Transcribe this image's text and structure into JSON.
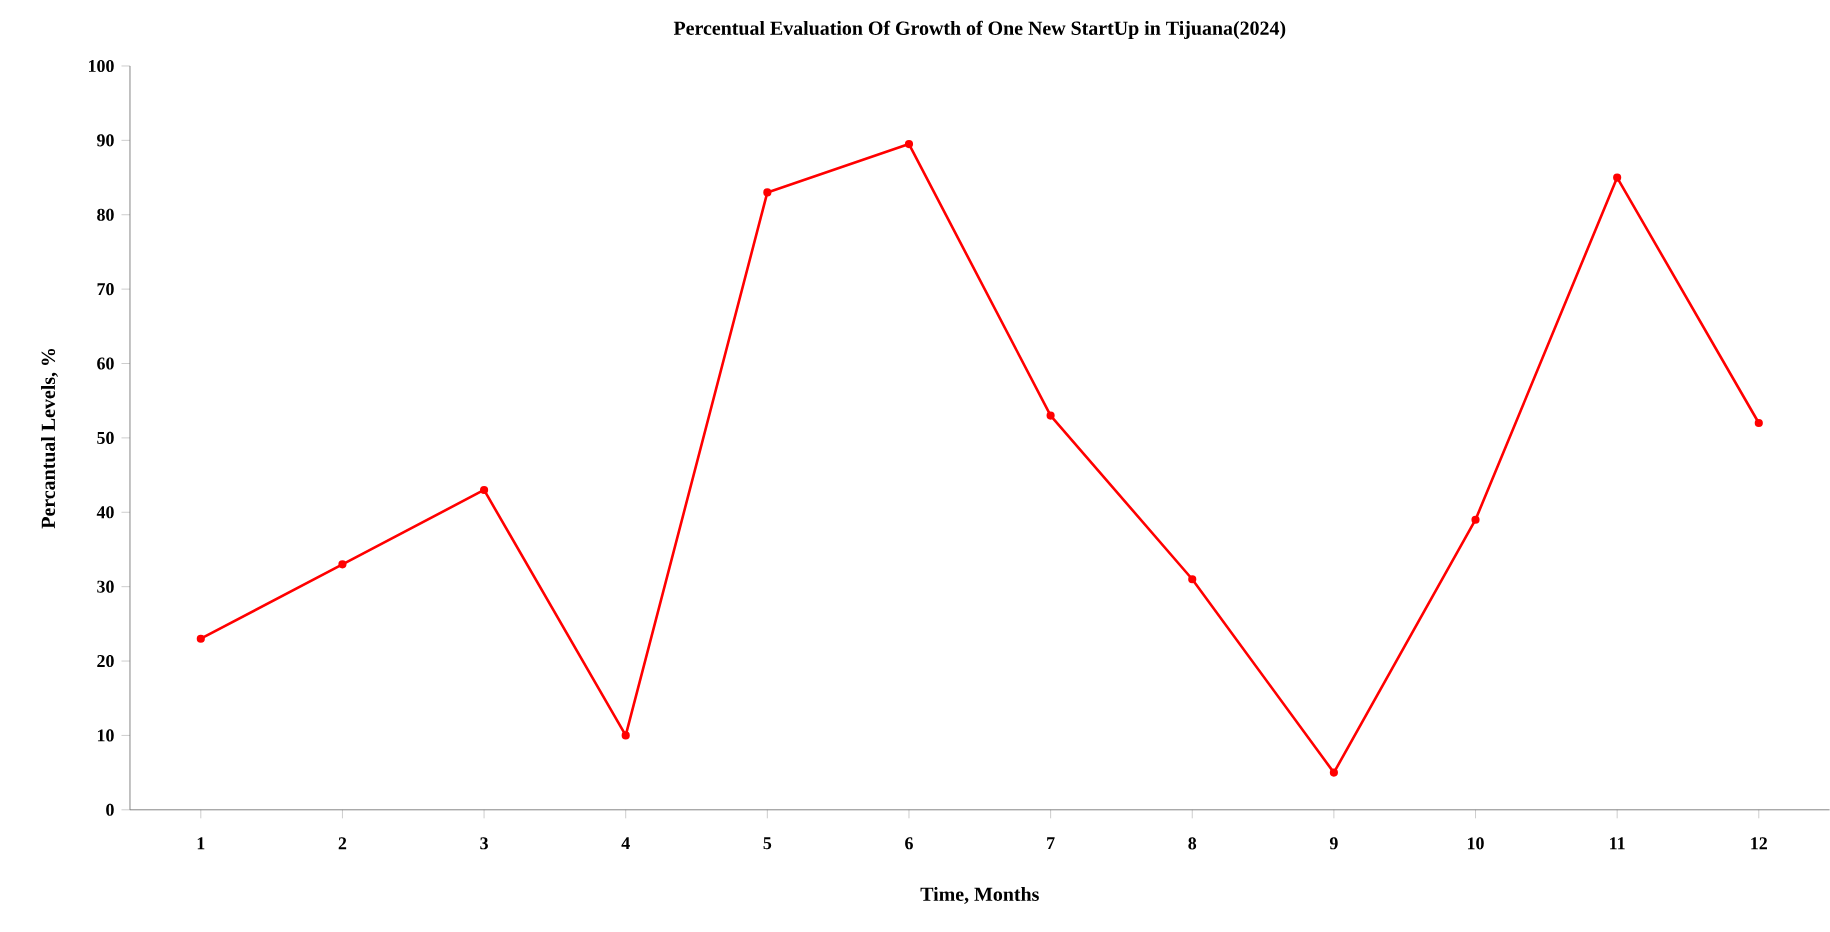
{
  "chart_data": {
    "type": "line",
    "title": "Percentual  Evaluation  Of Growth  of One New StartUp  in Tijuana(2024)",
    "xlabel": "Time, Months",
    "ylabel": "Percantual Levels, %",
    "categories": [
      "1",
      "2",
      "3",
      "4",
      "5",
      "6",
      "7",
      "8",
      "9",
      "10",
      "11",
      "12"
    ],
    "series": [
      {
        "color": "#ff0000",
        "values": [
          23,
          33,
          43,
          10,
          83,
          89.5,
          53,
          31,
          5,
          39,
          85,
          52
        ]
      }
    ],
    "ylim": [
      0,
      100
    ],
    "yticks": [
      0,
      10,
      20,
      30,
      40,
      50,
      60,
      70,
      80,
      90,
      100
    ],
    "grid": false,
    "marker": "circle",
    "line_style": "solid"
  }
}
